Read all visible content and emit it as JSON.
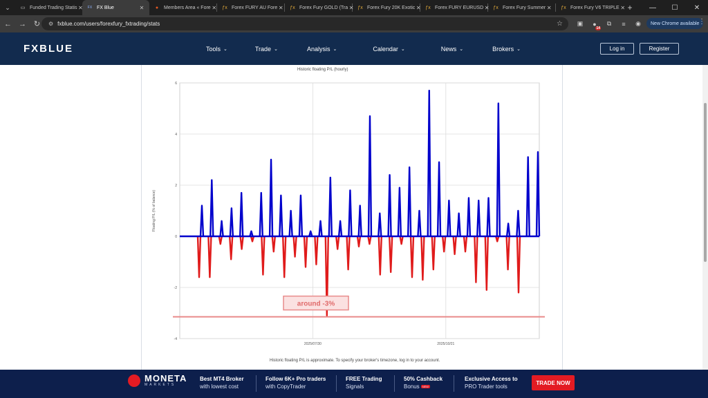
{
  "browser": {
    "tabs": [
      {
        "title": "Funded Trading Statis",
        "icon": "doc-icon",
        "active": false
      },
      {
        "title": "FX Blue",
        "icon": "fxblue-icon",
        "active": true
      },
      {
        "title": "Members Area « Fore",
        "icon": "members-icon",
        "active": false
      },
      {
        "title": "Forex FURY AU Fore",
        "icon": "fx-icon",
        "active": false
      },
      {
        "title": "Forex Fury GOLD (Tra",
        "icon": "fx-icon",
        "active": false
      },
      {
        "title": "Forex Fury 20K Exotic",
        "icon": "fx-icon",
        "active": false
      },
      {
        "title": "Forex FURY EURUSD",
        "icon": "fx-icon",
        "active": false
      },
      {
        "title": "Forex Fury Summer",
        "icon": "fx-icon",
        "active": false
      },
      {
        "title": "Forex Fury V6 TRIPLE",
        "icon": "fx-icon",
        "active": false
      }
    ],
    "url": "fxblue.com/users/forexfury_fxtrading/stats",
    "extension_badge": "14",
    "update_label": "New Chrome available"
  },
  "site": {
    "logo": "FXBLUE",
    "menu": [
      "Tools",
      "Trade",
      "Analysis",
      "Calendar",
      "News",
      "Brokers"
    ],
    "login_label": "Log in",
    "register_label": "Register",
    "brand_color": "#122b4e"
  },
  "chart_data": {
    "type": "bar",
    "title": "Historic floating P/L (hourly)",
    "ylabel": "Floating P/L (% of balance)",
    "xlabel": "",
    "ylim": [
      -4,
      6
    ],
    "yticks": [
      6,
      4,
      2,
      0,
      -2,
      -4
    ],
    "xticks": [
      "2025/07/30",
      "2025/10/21"
    ],
    "grid": true,
    "positive_color": "#0000cc",
    "negative_color": "#e01b1b",
    "positive_values": [
      1.2,
      2.2,
      0.6,
      1.1,
      1.7,
      0.2,
      1.7,
      3.0,
      1.6,
      1.0,
      1.6,
      0.2,
      0.6,
      2.3,
      0.6,
      1.8,
      1.2,
      4.7,
      0.9,
      2.4,
      1.9,
      2.7,
      1.0,
      5.7,
      2.9,
      1.4,
      0.9,
      1.5,
      1.4,
      1.5,
      5.2,
      0.5,
      1.0,
      3.1,
      3.3
    ],
    "negative_values": [
      -1.6,
      -1.6,
      -0.3,
      -0.9,
      -0.5,
      -0.2,
      -1.5,
      -0.6,
      -1.6,
      -0.8,
      -1.2,
      -1.1,
      -3.1,
      -0.5,
      -1.3,
      -0.4,
      -0.3,
      -1.5,
      -1.4,
      -0.3,
      -1.6,
      -1.7,
      -1.3,
      -0.6,
      -0.7,
      -0.6,
      -1.8,
      -2.1,
      -0.2,
      -1.3,
      -2.2
    ],
    "annotation": "around -3%",
    "reference_line": -3.15,
    "footnote": "Historic floating P/L is approximate. To specify your broker's timezone, log in to your account."
  },
  "banner": {
    "brand": "MONETA",
    "brand_sub": "MARKETS",
    "promos": [
      {
        "line1": "Best MT4 Broker",
        "line2": "with lowest cost"
      },
      {
        "line1": "Follow 6K+ Pro traders",
        "line2": "with CopyTrader"
      },
      {
        "line1": "FREE Trading",
        "line2": "Signals"
      },
      {
        "line1": "50% Cashback",
        "line2": "Bonus",
        "tag": "NEW"
      },
      {
        "line1": "Exclusive Access to",
        "line2": "PRO Trader tools"
      }
    ],
    "cta": "TRADE NOW"
  }
}
